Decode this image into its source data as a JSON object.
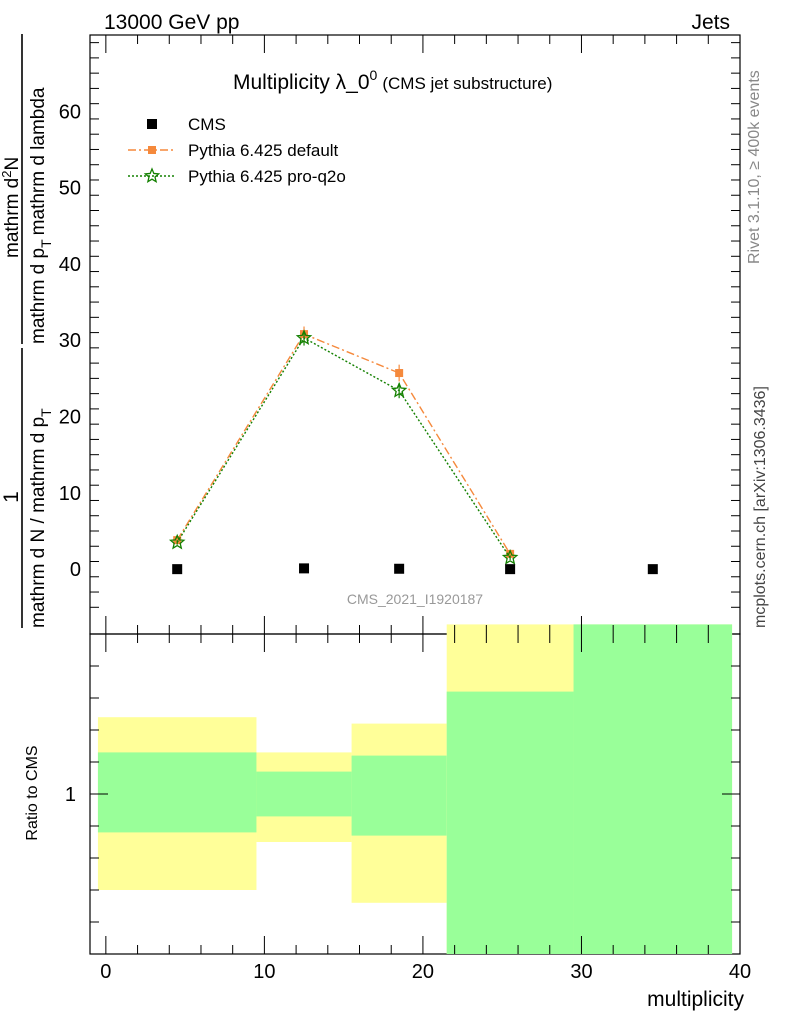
{
  "header": {
    "left": "13000 GeV pp",
    "right": "Jets"
  },
  "side": {
    "rivet": "Rivet 3.1.10, ≥ 400k events",
    "mcplots": "mcplots.cern.ch [arXiv:1306.3436]"
  },
  "watermark": "CMS_2021_I1920187",
  "colors": {
    "cms": "#000000",
    "pythia_default": "#f5893c",
    "pythia_proq2o": "#138000",
    "band_yellow": "#ffff99",
    "band_green": "#99ff99"
  },
  "chart_data": [
    {
      "type": "line",
      "title": "Multiplicity λ_0",
      "title_sup": "0",
      "title_note": "(CMS jet substructure)",
      "ylabel_numer_one": "1",
      "ylabel_denom_main": "mathrm d N / mathrm d p",
      "ylabel_denom_mid": "mathrm d N / mathrm d p",
      "ylabel_parts": {
        "numer_one": "1",
        "denom_a": "mathrm d N / mathrm d p",
        "denom_b": "mathrm d N",
        "numer2": "mathrm d",
        "numer2_sup": "2",
        "numer2_rest": "N",
        "denom2_a": "mathrm d p",
        "denom2_b": "mathrm d lambda"
      },
      "ylabel_numer_two": "mathrm d",
      "ylabel_numer_two_sup": "2",
      "ylabel_numer_two_rest": "N",
      "ylabel_denom_two_a": "mathrm d p",
      "ylabel_denom_two_sub": "T",
      "ylabel_denom_two_b": "mathrm d lambda",
      "ylabel_denom_one_sub": "T",
      "xlim": [
        -1,
        40
      ],
      "ylim": [
        -8.5,
        70
      ],
      "yticks": [
        0,
        10,
        20,
        30,
        40,
        50,
        60
      ],
      "legend_placement": "top-left",
      "series": [
        {
          "name": "CMS",
          "marker": "square",
          "x": [
            4.5,
            12.5,
            18.5,
            25.5,
            34.5
          ],
          "y": [
            0.0,
            0.1,
            0.05,
            0.0,
            0.0
          ]
        },
        {
          "name": "Pythia 6.425 default",
          "marker": "square",
          "x": [
            4.5,
            12.5,
            18.5,
            25.5
          ],
          "y": [
            3.8,
            30.8,
            25.7,
            2.0
          ],
          "yerr": [
            0.3,
            1.0,
            1.1,
            0.3
          ]
        },
        {
          "name": "Pythia 6.425 pro-q2o",
          "marker": "star",
          "x": [
            4.5,
            12.5,
            18.5,
            25.5
          ],
          "y": [
            3.5,
            30.3,
            23.4,
            1.5
          ],
          "yerr": [
            0.3,
            1.0,
            1.0,
            0.3
          ]
        }
      ]
    },
    {
      "type": "area",
      "ylabel": "Ratio to CMS",
      "xlabel": "multiplicity",
      "xlim": [
        -1,
        40
      ],
      "xticks": [
        0,
        10,
        20,
        30,
        40
      ],
      "yticks_labeled": [
        1
      ],
      "ylim": [
        0.5,
        1.5
      ],
      "bins": [
        {
          "x0": -0.5,
          "x1": 9.5,
          "green": [
            0.88,
            1.13
          ],
          "yellow": [
            0.7,
            1.24
          ]
        },
        {
          "x0": 9.5,
          "x1": 15.5,
          "green": [
            0.93,
            1.07
          ],
          "yellow": [
            0.85,
            1.13
          ]
        },
        {
          "x0": 15.5,
          "x1": 21.5,
          "green": [
            0.87,
            1.12
          ],
          "yellow": [
            0.66,
            1.22
          ]
        },
        {
          "x0": 21.5,
          "x1": 29.5,
          "green": [
            0.5,
            1.32
          ],
          "yellow": [
            0.5,
            1.53
          ]
        },
        {
          "x0": 29.5,
          "x1": 39.5,
          "green": [
            0.5,
            1.53
          ],
          "yellow": [
            0.5,
            1.53
          ]
        }
      ]
    }
  ]
}
